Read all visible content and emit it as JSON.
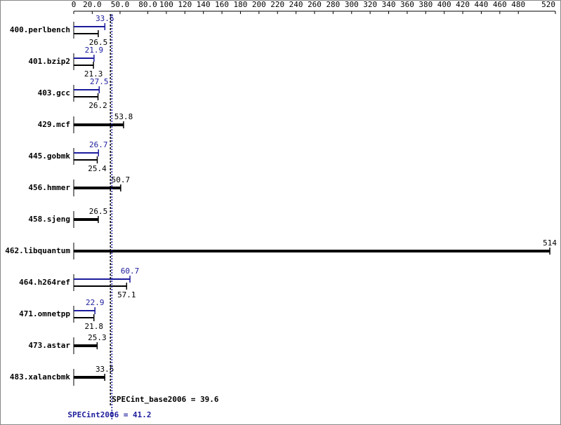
{
  "chart_data": {
    "type": "bar",
    "orientation": "horizontal",
    "categories": [
      "400.perlbench",
      "401.bzip2",
      "403.gcc",
      "429.mcf",
      "445.gobmk",
      "456.hmmer",
      "458.sjeng",
      "462.libquantum",
      "464.h264ref",
      "471.omnetpp",
      "473.astar",
      "483.xalancbmk"
    ],
    "series": [
      {
        "color": "#1c1c9c",
        "values": [
          33.6,
          21.9,
          27.5,
          null,
          26.7,
          null,
          null,
          null,
          60.7,
          22.9,
          null,
          null
        ]
      },
      {
        "color": "#000000",
        "values": [
          26.5,
          21.3,
          26.2,
          53.8,
          25.4,
          50.7,
          26.5,
          514,
          57.1,
          21.8,
          25.3,
          33.5
        ]
      }
    ],
    "xlim": [
      0,
      520
    ],
    "xticks": [
      0,
      {
        "value": 20,
        "label": "20.0"
      },
      {
        "value": 50,
        "label": "50.0"
      },
      {
        "value": 80,
        "label": "80.0"
      },
      100,
      120,
      140,
      160,
      180,
      200,
      220,
      240,
      260,
      280,
      300,
      320,
      340,
      360,
      380,
      400,
      420,
      440,
      460,
      480,
      520
    ],
    "reference_lines": [
      {
        "value": 39.6,
        "text": "SPECint_base2006 = 39.6",
        "color": "#000000"
      },
      {
        "value": 41.2,
        "text": "SPECint2006 = 41.2",
        "color": "#1c1c9c"
      }
    ]
  }
}
